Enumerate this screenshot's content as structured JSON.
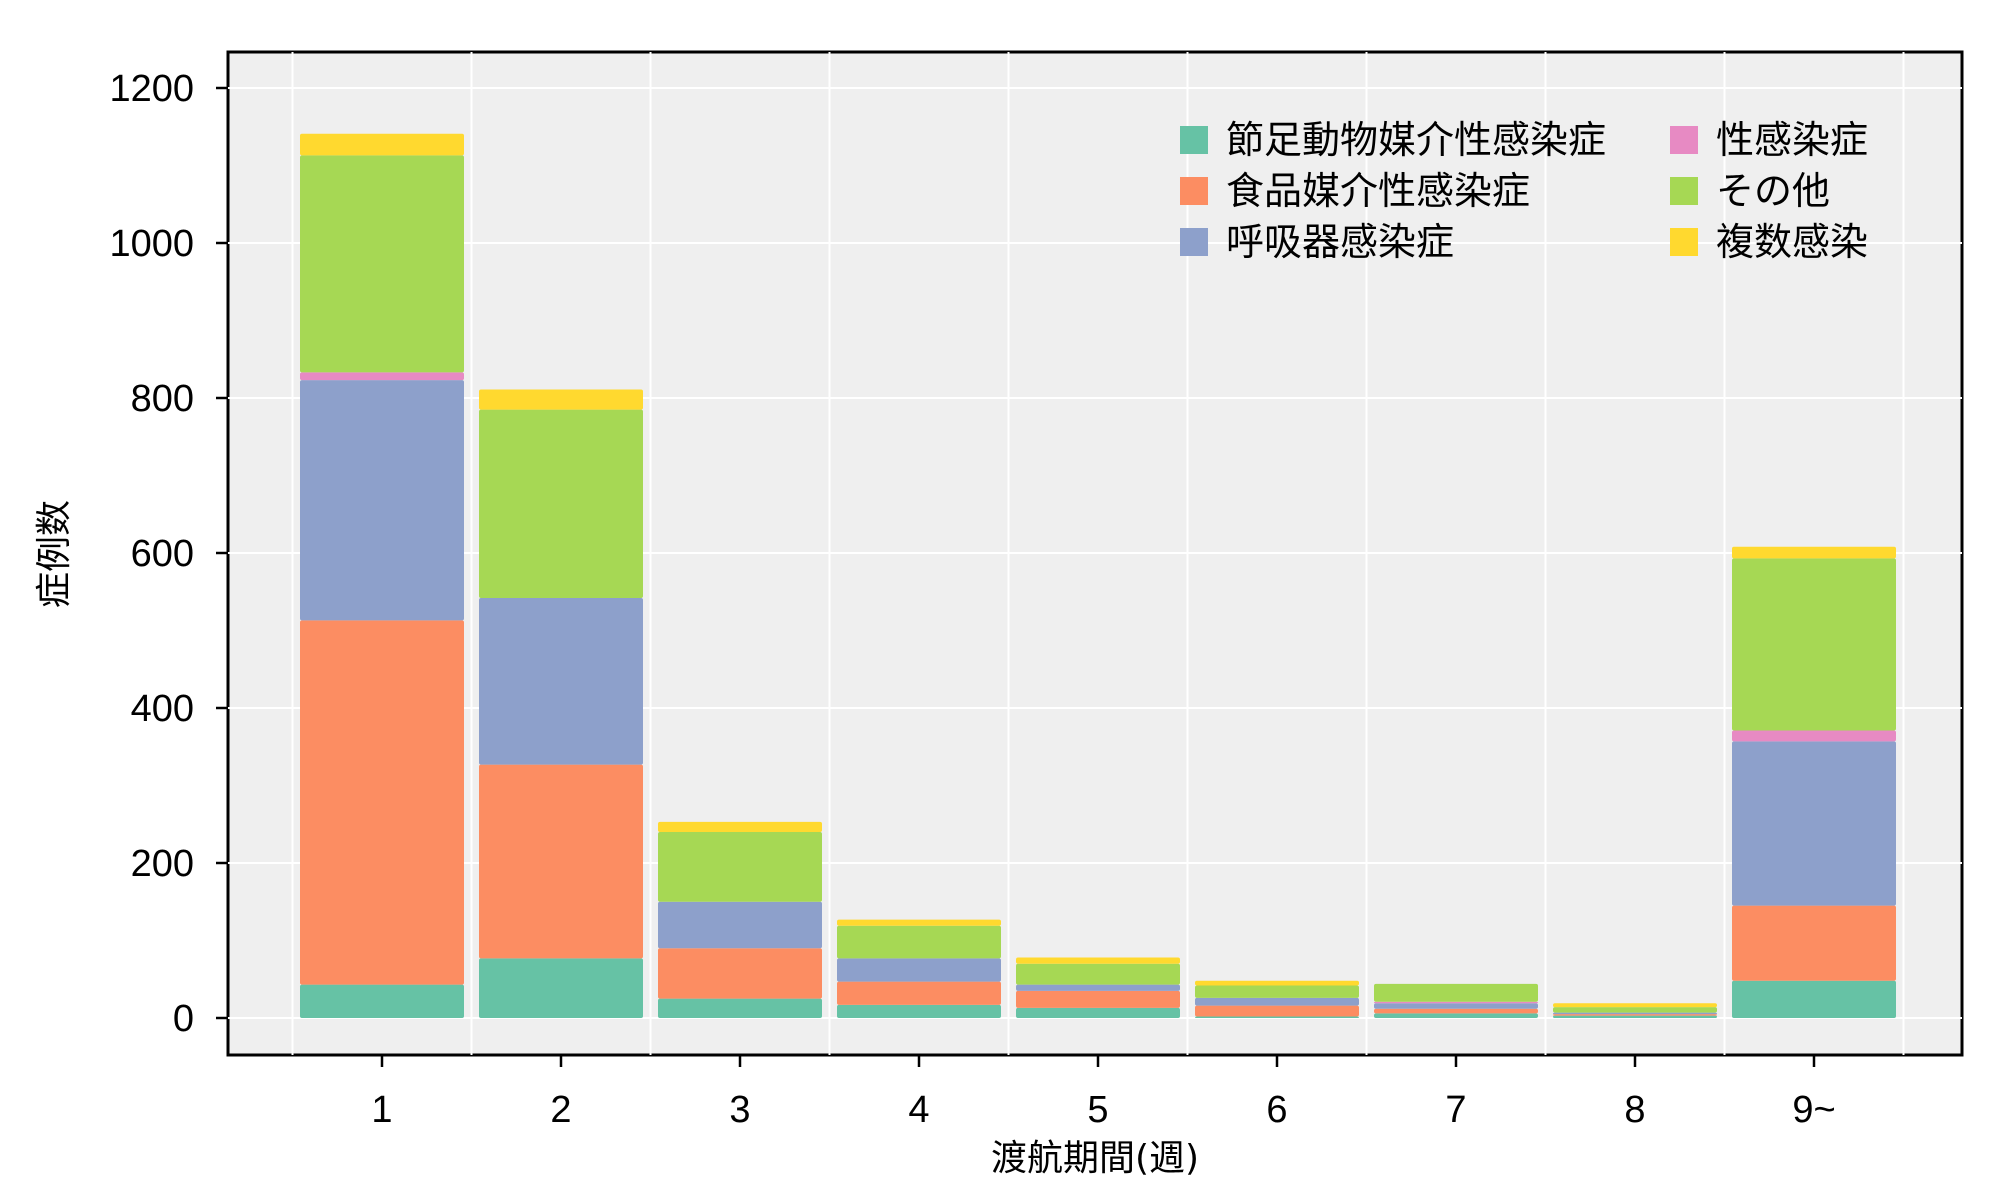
{
  "chart_data": {
    "type": "bar",
    "stacked": true,
    "xlabel": "渡航期間(週)",
    "ylabel": "症例数",
    "ylim": [
      0,
      1200
    ],
    "yticks": [
      0,
      200,
      400,
      600,
      800,
      1000,
      1200
    ],
    "grid": true,
    "legend_position": "top-right",
    "categories": [
      "1",
      "2",
      "3",
      "4",
      "5",
      "6",
      "7",
      "8",
      "9~"
    ],
    "series": [
      {
        "name": "節足動物媒介性感染症",
        "color": "#66c2a5",
        "values": [
          43,
          77,
          25,
          17,
          13,
          2,
          6,
          3,
          48
        ]
      },
      {
        "name": "食品媒介性感染症",
        "color": "#fc8d62",
        "values": [
          470,
          250,
          65,
          30,
          22,
          14,
          6,
          2,
          97
        ]
      },
      {
        "name": "呼吸器感染症",
        "color": "#8da0cb",
        "values": [
          310,
          215,
          60,
          30,
          8,
          10,
          7,
          2,
          212
        ]
      },
      {
        "name": "性感染症",
        "color": "#e78ac3",
        "values": [
          10,
          0,
          0,
          0,
          0,
          0,
          2,
          0,
          14
        ]
      },
      {
        "name": "その他",
        "color": "#a6d854",
        "values": [
          280,
          243,
          90,
          42,
          27,
          16,
          23,
          7,
          222
        ]
      },
      {
        "name": "複数感染",
        "color": "#ffd92f",
        "values": [
          28,
          26,
          13,
          8,
          8,
          6,
          0,
          5,
          15
        ]
      }
    ]
  }
}
